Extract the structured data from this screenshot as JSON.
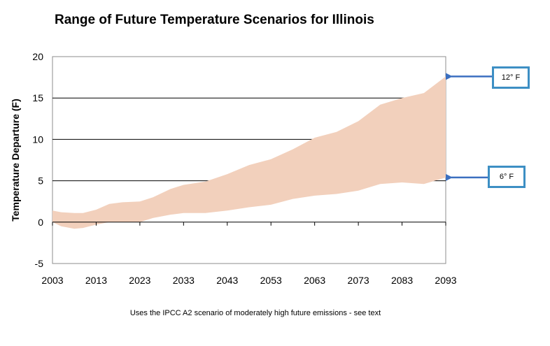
{
  "chart_data": {
    "type": "area",
    "title": "Range of Future Temperature Scenarios for Illinois",
    "ylabel": "Temperature Departure (F)",
    "xlabel": "",
    "xlim": [
      2003,
      2093
    ],
    "ylim": [
      -5,
      20
    ],
    "x_ticks": [
      2003,
      2013,
      2023,
      2033,
      2043,
      2053,
      2063,
      2073,
      2083,
      2093
    ],
    "y_ticks": [
      -5,
      0,
      5,
      10,
      15,
      20
    ],
    "grid": "horizontal",
    "fill_color": "#f2d0bc",
    "band": {
      "x": [
        2003,
        2005,
        2008,
        2010,
        2013,
        2016,
        2019,
        2023,
        2026,
        2030,
        2033,
        2038,
        2043,
        2048,
        2053,
        2058,
        2063,
        2068,
        2073,
        2078,
        2083,
        2088,
        2093
      ],
      "upper": [
        1.4,
        1.2,
        1.1,
        1.1,
        1.5,
        2.2,
        2.4,
        2.5,
        3.0,
        4.0,
        4.5,
        4.9,
        5.8,
        6.9,
        7.6,
        8.8,
        10.2,
        10.9,
        12.2,
        14.2,
        15.0,
        15.6,
        17.6
      ],
      "lower": [
        0.0,
        -0.5,
        -0.8,
        -0.7,
        -0.3,
        0.0,
        0.0,
        0.0,
        0.5,
        0.9,
        1.1,
        1.1,
        1.4,
        1.8,
        2.1,
        2.8,
        3.2,
        3.4,
        3.8,
        4.6,
        4.8,
        4.6,
        5.4
      ]
    },
    "annotations": [
      {
        "text": "12° F",
        "target_y": 17.6
      },
      {
        "text": "6° F",
        "target_y": 5.4
      }
    ]
  },
  "footnote": "Uses the IPCC A2 scenario of moderately high future emissions - see text",
  "colors": {
    "callout_border": "#3d8fc4",
    "arrow": "#3b6fc0",
    "plot_border": "#8c8c8c"
  }
}
